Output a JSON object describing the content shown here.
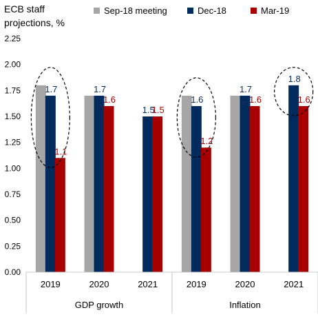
{
  "chart_data": {
    "type": "bar",
    "y_axis_title": "ECB staff projections, %",
    "ylim": [
      0,
      2.25
    ],
    "yticks": [
      "0.00",
      "0.25",
      "0.50",
      "0.75",
      "1.00",
      "1.25",
      "1.50",
      "1.75",
      "2.00",
      "2.25"
    ],
    "grid": false,
    "legend_position": "top",
    "series": [
      {
        "name": "Sep-18 meeting",
        "color": "#a6a6a6",
        "label_color": "#000000",
        "values": [
          1.8,
          1.7,
          null,
          1.7,
          1.7,
          null
        ],
        "labels": [
          null,
          null,
          null,
          null,
          null,
          null
        ]
      },
      {
        "name": "Dec-18",
        "color": "#002b5c",
        "label_color": "#002b5c",
        "values": [
          1.7,
          1.7,
          1.5,
          1.6,
          1.7,
          1.8
        ],
        "labels": [
          "1.7",
          "1.7",
          "1.5",
          "1.6",
          "1.7",
          "1.8"
        ]
      },
      {
        "name": "Mar-19",
        "color": "#a80000",
        "label_color": "#a80000",
        "values": [
          1.1,
          1.6,
          1.5,
          1.2,
          1.6,
          1.6
        ],
        "labels": [
          "1.1",
          "1.6",
          "1.5",
          "1.2",
          "1.6",
          "1.6"
        ]
      }
    ],
    "categories": [
      "2019",
      "2020",
      "2021",
      "2019",
      "2020",
      "2021"
    ],
    "groups": [
      {
        "label": "GDP growth",
        "categories": [
          0,
          1,
          2
        ]
      },
      {
        "label": "Inflation",
        "categories": [
          3,
          4,
          5
        ]
      }
    ],
    "highlighted_categories": [
      0,
      3,
      5
    ]
  }
}
